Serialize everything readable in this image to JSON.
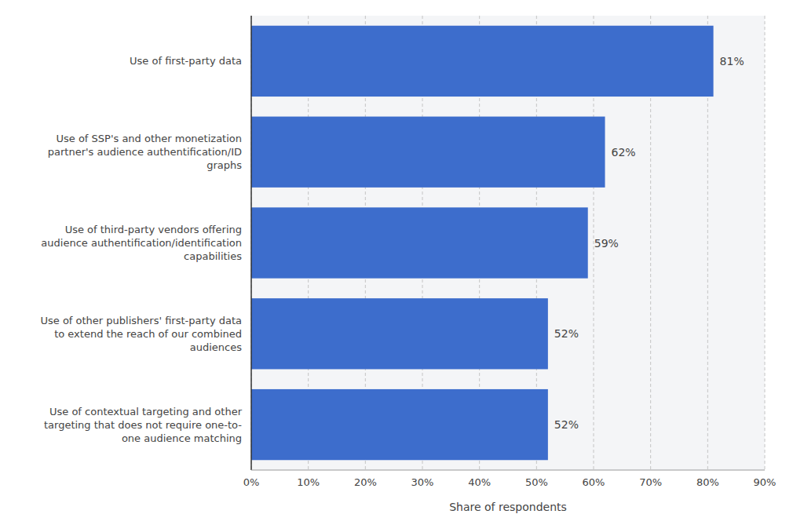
{
  "chart_data": {
    "type": "bar",
    "orientation": "horizontal",
    "categories": [
      "Use of contextual targeting and other\ntargeting that does not require one-to-\none audience matching",
      "Use of other publishers' first-party data\nto extend the reach of our combined\naudiences",
      "Use of third-party vendors offering\naudience authentification/identification\ncapabilities",
      "Use of SSP's and other monetization\npartner's audience authentification/ID\ngraphs",
      "Use of first-party data"
    ],
    "values": [
      52,
      52,
      59,
      62,
      81
    ],
    "value_labels": [
      "52%",
      "52%",
      "59%",
      "62%",
      "81%"
    ],
    "data_labels": true,
    "color": "#3d6dcc",
    "xlabel": "Share of respondents",
    "xlim": [
      0,
      90
    ],
    "xticks": [
      {
        "value": 0,
        "label": "0%"
      },
      {
        "value": 10,
        "label": "10%"
      },
      {
        "value": 20,
        "label": "20%"
      },
      {
        "value": 30,
        "label": "30%"
      },
      {
        "value": 40,
        "label": "40%"
      },
      {
        "value": 50,
        "label": "50%"
      },
      {
        "value": 60,
        "label": "60%"
      },
      {
        "value": 70,
        "label": "70%"
      },
      {
        "value": 80,
        "label": "80%"
      },
      {
        "value": 90,
        "label": "90%"
      }
    ],
    "grid": true
  }
}
